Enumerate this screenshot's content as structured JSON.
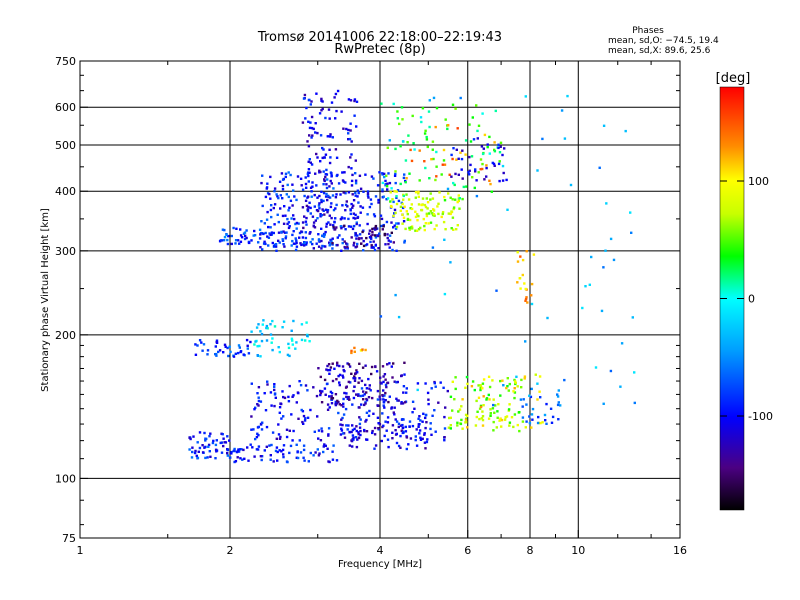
{
  "chart_data": {
    "type": "scatter",
    "title": "Tromsø 20141006 22:18:00–22:19:43",
    "subtitle": "RwPretec (8p)",
    "xlabel": "Frequency [MHz]",
    "ylabel": "Stationary phase Virtual Height [km]",
    "xscale": "log",
    "yscale": "log",
    "xlim": [
      1,
      16
    ],
    "ylim": [
      75,
      750
    ],
    "x_ticks": [
      1,
      2,
      4,
      6,
      8,
      10,
      16
    ],
    "y_ticks": [
      75,
      100,
      200,
      300,
      400,
      500,
      600,
      750
    ],
    "x_grid": [
      2,
      4,
      6,
      8,
      10
    ],
    "y_grid": [
      100,
      200,
      300,
      400,
      500,
      600
    ],
    "grid": true,
    "phase_info": {
      "heading": "Phases",
      "line_o": "mean, sd,O: −74.5, 19.4",
      "line_x": "mean, sd,X:  89.6, 25.6"
    },
    "colorbar": {
      "label": "[deg]",
      "min": -180,
      "max": 180,
      "ticks": [
        100,
        0,
        -100
      ],
      "placement": "right"
    },
    "clusters": [
      {
        "f": [
          1.65,
          2.0
        ],
        "h": [
          110,
          125
        ],
        "phase": -90,
        "n": 60
      },
      {
        "f": [
          2.0,
          3.3
        ],
        "h": [
          108,
          118
        ],
        "phase": -95,
        "n": 80
      },
      {
        "f": [
          3.3,
          5.0
        ],
        "h": [
          115,
          130
        ],
        "phase": -110,
        "n": 70
      },
      {
        "f": [
          2.2,
          5.5
        ],
        "h": [
          120,
          160
        ],
        "phase": -100,
        "n": 260
      },
      {
        "f": [
          3.0,
          4.5
        ],
        "h": [
          140,
          175
        ],
        "phase": -125,
        "n": 120
      },
      {
        "f": [
          5.5,
          7.8
        ],
        "h": [
          125,
          165
        ],
        "phase": 60,
        "n": 90
      },
      {
        "f": [
          5.8,
          8.5
        ],
        "h": [
          125,
          165
        ],
        "phase": 100,
        "n": 40
      },
      {
        "f": [
          7.6,
          9.2
        ],
        "h": [
          130,
          155
        ],
        "phase": -70,
        "n": 30
      },
      {
        "f": [
          1.7,
          2.2
        ],
        "h": [
          180,
          195
        ],
        "phase": -80,
        "n": 40
      },
      {
        "f": [
          2.2,
          2.9
        ],
        "h": [
          180,
          215
        ],
        "phase": -20,
        "n": 50
      },
      {
        "f": [
          3.5,
          3.8
        ],
        "h": [
          183,
          190
        ],
        "phase": 120,
        "n": 8
      },
      {
        "f": [
          1.9,
          2.3
        ],
        "h": [
          310,
          335
        ],
        "phase": -80,
        "n": 40
      },
      {
        "f": [
          2.3,
          3.2
        ],
        "h": [
          305,
          330
        ],
        "phase": -90,
        "n": 60
      },
      {
        "f": [
          2.3,
          4.5
        ],
        "h": [
          300,
          440
        ],
        "phase": -90,
        "n": 320
      },
      {
        "f": [
          2.8,
          3.6
        ],
        "h": [
          330,
          650
        ],
        "phase": -105,
        "n": 160
      },
      {
        "f": [
          3.2,
          4.3
        ],
        "h": [
          305,
          340
        ],
        "phase": -130,
        "n": 50
      },
      {
        "f": [
          4.2,
          5.8
        ],
        "h": [
          330,
          400
        ],
        "phase": 75,
        "n": 110
      },
      {
        "f": [
          4.0,
          7.0
        ],
        "h": [
          380,
          620
        ],
        "phase": 30,
        "n": 90
      },
      {
        "f": [
          4.5,
          6.8
        ],
        "h": [
          400,
          560
        ],
        "phase": 140,
        "n": 25
      },
      {
        "f": [
          5.5,
          7.2
        ],
        "h": [
          420,
          520
        ],
        "phase": -100,
        "n": 40
      },
      {
        "f": [
          7.5,
          8.2
        ],
        "h": [
          230,
          300
        ],
        "phase": 120,
        "n": 20
      },
      {
        "f": [
          4.0,
          13.0
        ],
        "h": [
          140,
          640
        ],
        "phase": -40,
        "n": 60
      }
    ]
  }
}
